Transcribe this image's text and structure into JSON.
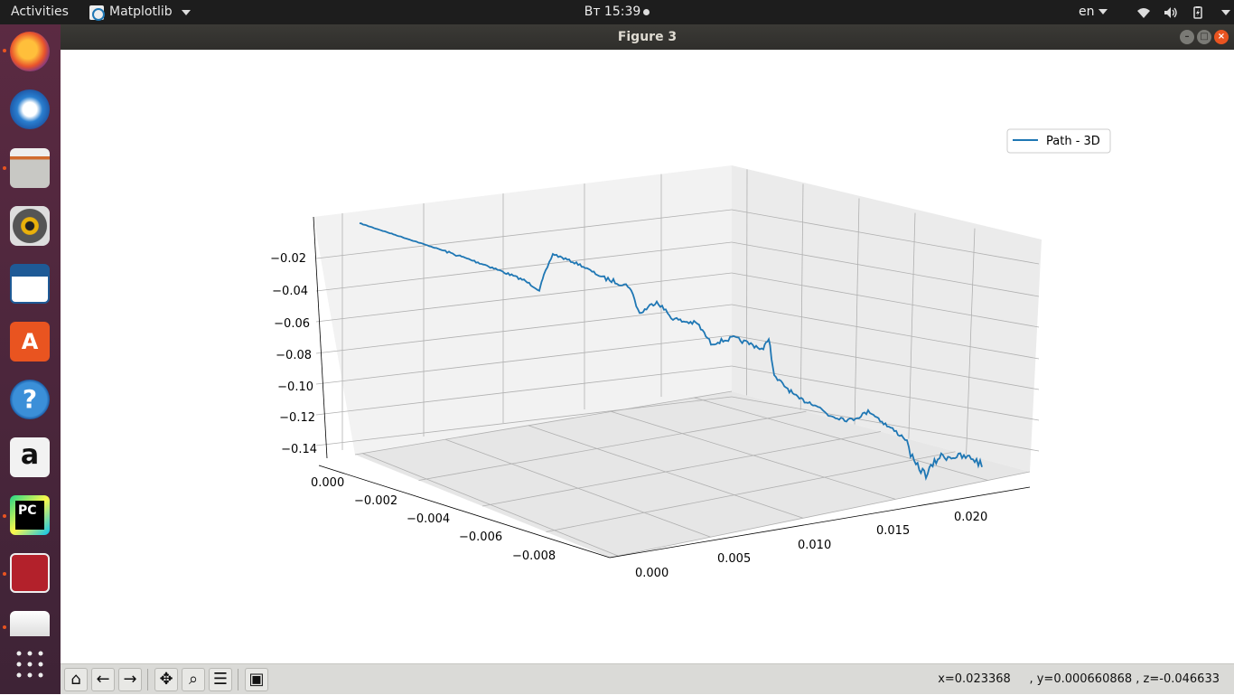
{
  "topbar": {
    "activities": "Activities",
    "app_name": "Matplotlib",
    "clock": "Вт 15:39",
    "language": "en"
  },
  "window": {
    "title": "Figure 3"
  },
  "dock": {
    "items": [
      "firefox",
      "thunderbird",
      "files",
      "rhythmbox",
      "libreoffice-writer",
      "ubuntu-software",
      "help",
      "amazon",
      "pycharm",
      "terminal",
      "remote-desktop",
      "show-applications"
    ]
  },
  "chart_data": {
    "type": "line",
    "projection": "3d",
    "legend": {
      "entries": [
        "Path - 3D"
      ],
      "placement": "top-right"
    },
    "series": [
      {
        "name": "Path - 3D",
        "color": "#1f77b4"
      }
    ],
    "x_ticks": [
      "0.000",
      "0.005",
      "0.010",
      "0.015",
      "0.020"
    ],
    "y_ticks": [
      "0.000",
      "−0.002",
      "−0.004",
      "−0.006",
      "−0.008"
    ],
    "z_ticks": [
      "−0.02",
      "−0.04",
      "−0.06",
      "−0.08",
      "−0.10",
      "−0.12",
      "−0.14"
    ],
    "grid": true
  },
  "toolbar": {
    "buttons": [
      "home-icon",
      "back-icon",
      "forward-icon",
      "pan-icon",
      "zoom-icon",
      "configure-subplots-icon",
      "save-icon"
    ],
    "coords_text": "x=0.023368     , y=0.000660868 , z=-0.046633"
  }
}
